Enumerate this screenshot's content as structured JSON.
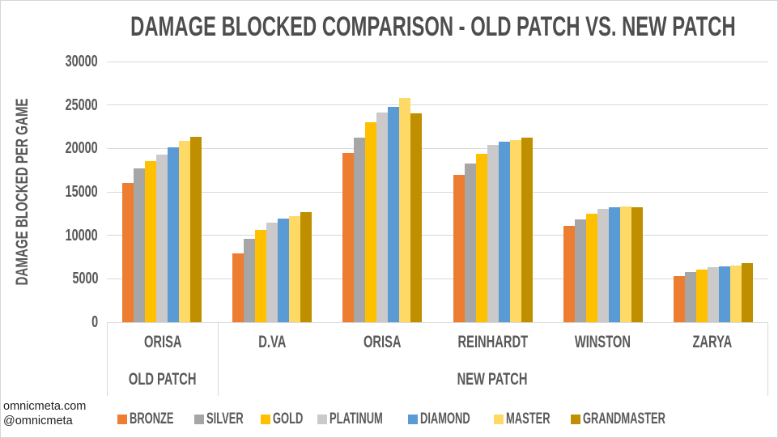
{
  "title": "DAMAGE BLOCKED COMPARISON - OLD PATCH VS. NEW PATCH",
  "footer": {
    "line1": "omnicmeta.com",
    "line2": "@omnicmeta"
  },
  "chart_data": {
    "type": "bar",
    "title": "DAMAGE BLOCKED COMPARISON - OLD PATCH VS. NEW PATCH",
    "xlabel": "",
    "ylabel": "DAMAGE BLOCKED PER GAME",
    "ylim": [
      0,
      30000
    ],
    "yticks": [
      0,
      5000,
      10000,
      15000,
      20000,
      25000,
      30000
    ],
    "grid": true,
    "legend_position": "bottom",
    "categories": [
      "ORISA",
      "D.VA",
      "ORISA",
      "REINHARDT",
      "WINSTON",
      "ZARYA"
    ],
    "category_groups": [
      {
        "label": "OLD PATCH",
        "span": 1
      },
      {
        "label": "NEW PATCH",
        "span": 5
      }
    ],
    "series": [
      {
        "name": "BRONZE",
        "color": "#ED7D31",
        "values": [
          16000,
          7900,
          19500,
          17000,
          11100,
          5300
        ]
      },
      {
        "name": "SILVER",
        "color": "#A6A6A6",
        "values": [
          17700,
          9600,
          21200,
          18300,
          11800,
          5800
        ]
      },
      {
        "name": "GOLD",
        "color": "#FFC000",
        "values": [
          18500,
          10600,
          23000,
          19400,
          12500,
          6100
        ]
      },
      {
        "name": "PLATINUM",
        "color": "#CBC9C9",
        "values": [
          19300,
          11500,
          24100,
          20400,
          13000,
          6300
        ]
      },
      {
        "name": "DIAMOND",
        "color": "#5B9BD5",
        "values": [
          20100,
          11900,
          24800,
          20800,
          13250,
          6400
        ]
      },
      {
        "name": "MASTER",
        "color": "#FFD966",
        "values": [
          20900,
          12200,
          25800,
          21000,
          13300,
          6500
        ]
      },
      {
        "name": "GRANDMASTER",
        "color": "#BF8F00",
        "values": [
          21300,
          12700,
          24000,
          21200,
          13200,
          6800
        ]
      }
    ]
  }
}
